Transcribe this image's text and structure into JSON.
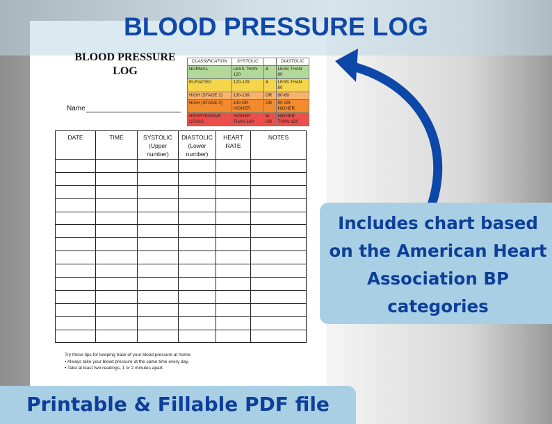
{
  "banner": {
    "title": "BLOOD PRESSURE LOG"
  },
  "document": {
    "title_lines": [
      "BLOOD PRESSURE",
      "LOG"
    ],
    "name_label": "Name",
    "classification_table": {
      "headers": {
        "classification": "CLASSIFICATION",
        "systolic": "SYSTOLIC",
        "diastolic": "DIASTOLIC"
      },
      "rows": [
        [
          "NORMAL",
          "LESS THAN 120",
          "&",
          "LESS THAN 80"
        ],
        [
          "ELEVATED",
          "120-129",
          "&",
          "LESS THAN 80"
        ],
        [
          "HIGH (STAGE 1)",
          "130-139",
          "OR",
          "80-89"
        ],
        [
          "HIGH (STAGE 2)",
          "140 OR HIGHER",
          "OR",
          "90 OR HIGHER"
        ],
        [
          "HIPERTENSIVE CRISIS",
          "HIGHER THAN 180",
          "&/ OR",
          "HIGHER THAN 120"
        ]
      ]
    },
    "log_table": {
      "headers": [
        "DATE",
        "TIME",
        "SYSTOLIC (Upper number)",
        "DIASTOLIC (Lower number)",
        "HEART RATE",
        "NOTES"
      ]
    },
    "tips": [
      "Try these tips for keeping track of your blood pressure at home:",
      "• Always take your blood pressure at the same time every day.",
      "• Take at least two readings, 1 or 2 minutes apart."
    ]
  },
  "callout": {
    "text": "Includes chart based on the American Heart Association BP categories"
  },
  "footer": {
    "text": "Printable & Fillable PDF file"
  }
}
